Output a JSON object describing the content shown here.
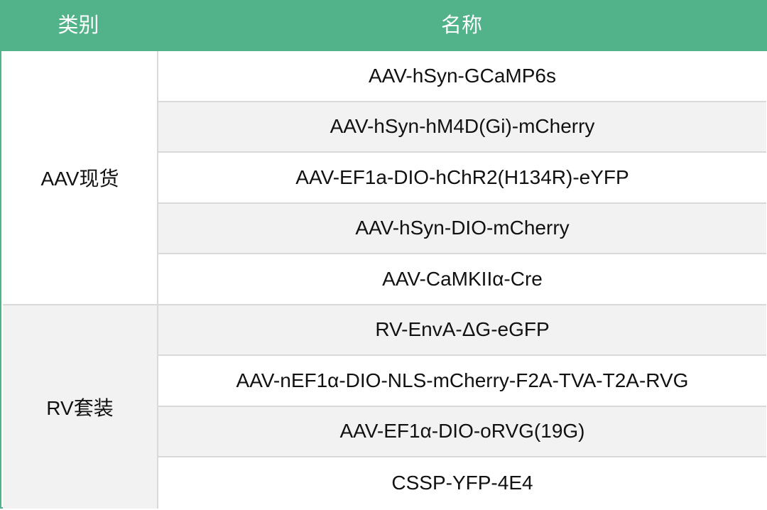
{
  "header": {
    "category": "类别",
    "name": "名称"
  },
  "groups": [
    {
      "label": "AAV现货",
      "items": [
        "AAV-hSyn-GCaMP6s",
        "AAV-hSyn-hM4D(Gi)-mCherry",
        "AAV-EF1a-DIO-hChR2(H134R)-eYFP",
        "AAV-hSyn-DIO-mCherry",
        "AAV-CaMKIIα-Cre"
      ]
    },
    {
      "label": "RV套装",
      "items": [
        "RV-EnvA-ΔG-eGFP",
        "AAV-nEF1α-DIO-NLS-mCherry-F2A-TVA-T2A-RVG",
        "AAV-EF1α-DIO-oRVG(19G)",
        "CSSP-YFP-4E4"
      ]
    }
  ],
  "colors": {
    "header": "#52b38a",
    "stripe": "#f2f2f2",
    "grid": "#d9d9d9"
  }
}
